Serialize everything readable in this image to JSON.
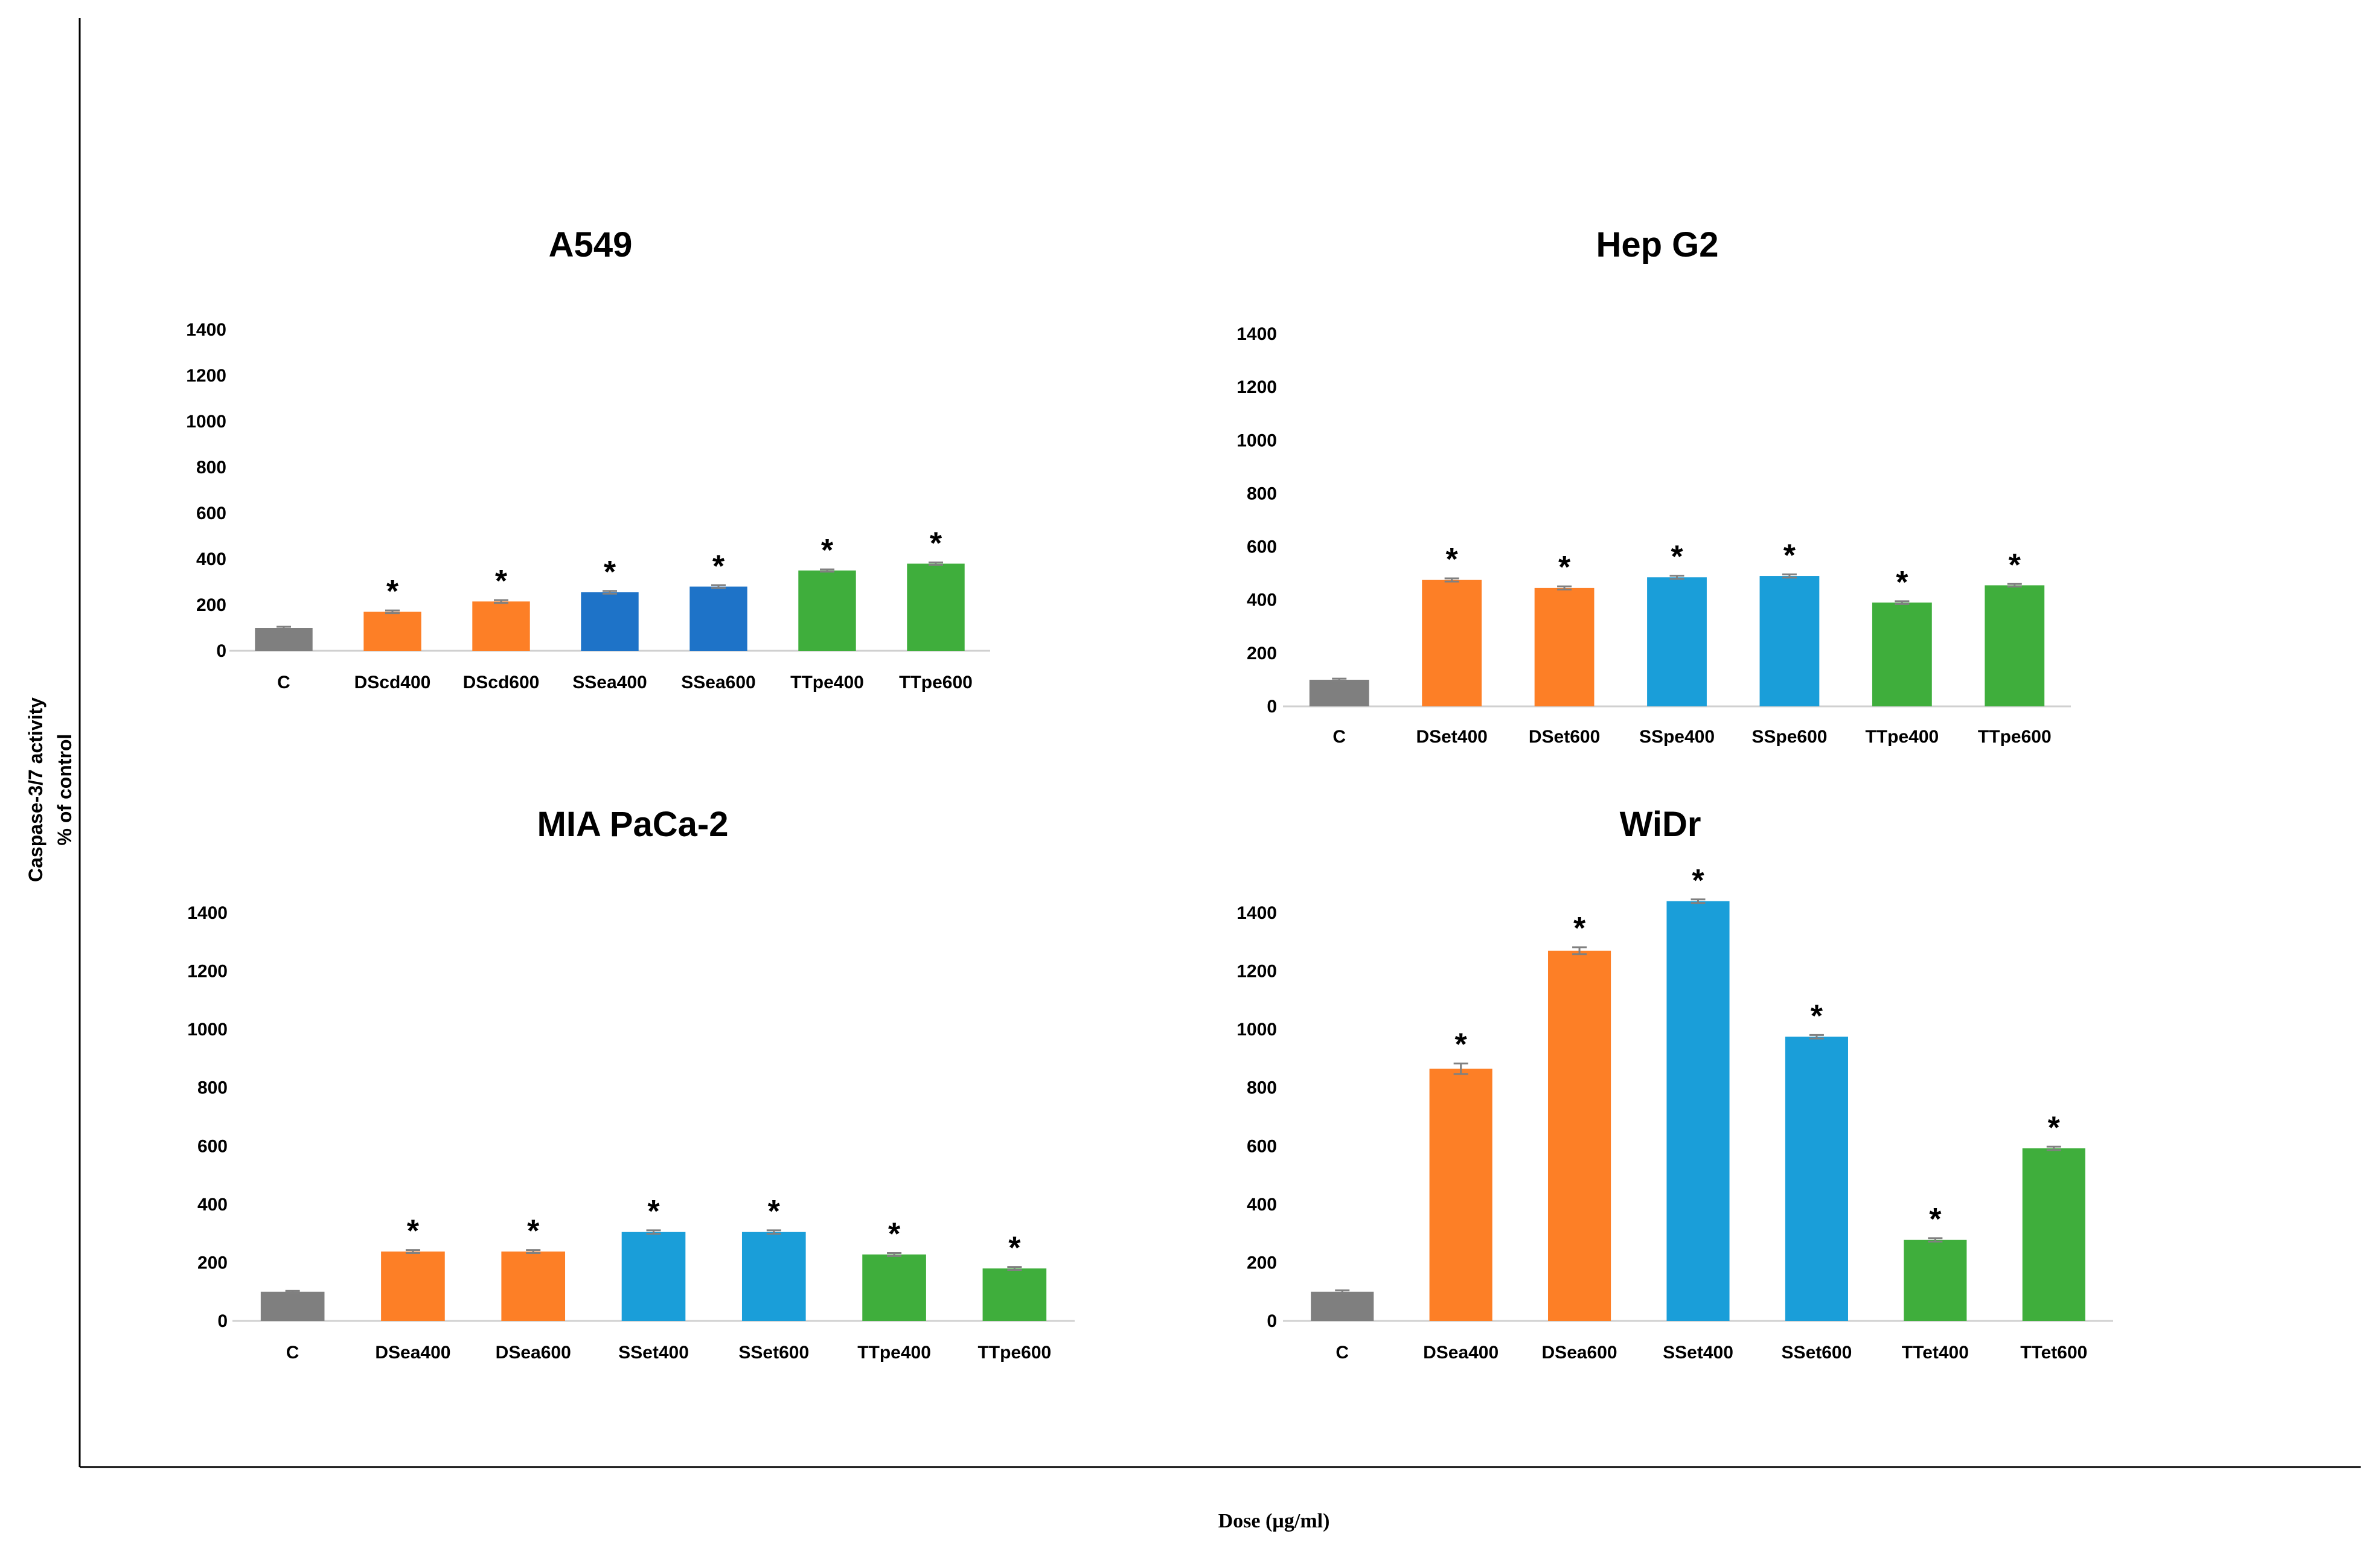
{
  "figure": {
    "x_axis_title": "Dose (µg/ml)",
    "y_axis_title_line1": "Caspase-3/7 activity",
    "y_axis_title_line2": "% of control"
  },
  "colors": {
    "control": "#7f7f7f",
    "orange": "#fd7f26",
    "blue_dark": "#1e73c8",
    "blue_light": "#1a9ed9",
    "green": "#3fae3c",
    "error_bar": "#808080",
    "axis_line": "#d0d0d0"
  },
  "chart_data": [
    {
      "type": "bar",
      "title": "A549",
      "categories": [
        "C",
        "DScd400",
        "DScd600",
        "SSea400",
        "SSea600",
        "TTpe400",
        "TTpe600"
      ],
      "values": [
        100,
        170,
        215,
        255,
        280,
        350,
        380
      ],
      "errors": [
        5,
        6,
        6,
        6,
        6,
        5,
        5
      ],
      "colors": [
        "control",
        "orange",
        "orange",
        "blue_dark",
        "blue_dark",
        "green",
        "green"
      ],
      "significant": [
        false,
        true,
        true,
        true,
        true,
        true,
        true
      ],
      "significance_marker": "*",
      "ylim": [
        0,
        1400
      ],
      "yticks": [
        0,
        200,
        400,
        600,
        800,
        1000,
        1200,
        1400
      ]
    },
    {
      "type": "bar",
      "title": "Hep G2",
      "categories": [
        "C",
        "DSet400",
        "DSet600",
        "SSpe400",
        "SSpe600",
        "TTpe400",
        "TTpe600"
      ],
      "values": [
        100,
        475,
        445,
        485,
        490,
        390,
        455
      ],
      "errors": [
        4,
        6,
        6,
        6,
        6,
        5,
        5
      ],
      "colors": [
        "control",
        "orange",
        "orange",
        "blue_light",
        "blue_light",
        "green",
        "green"
      ],
      "significant": [
        false,
        true,
        true,
        true,
        true,
        true,
        true
      ],
      "significance_marker": "*",
      "ylim": [
        0,
        1400
      ],
      "yticks": [
        0,
        200,
        400,
        600,
        800,
        1000,
        1200,
        1400
      ]
    },
    {
      "type": "bar",
      "title": "MIA PaCa-2",
      "categories": [
        "C",
        "DSea400",
        "DSea600",
        "SSet400",
        "SSet600",
        "TTpe400",
        "TTpe600"
      ],
      "values": [
        100,
        238,
        238,
        305,
        305,
        228,
        180
      ],
      "errors": [
        3,
        5,
        5,
        6,
        6,
        5,
        5
      ],
      "colors": [
        "control",
        "orange",
        "orange",
        "blue_light",
        "blue_light",
        "green",
        "green"
      ],
      "significant": [
        false,
        true,
        true,
        true,
        true,
        true,
        true
      ],
      "significance_marker": "*",
      "ylim": [
        0,
        1400
      ],
      "yticks": [
        0,
        200,
        400,
        600,
        800,
        1000,
        1200,
        1400
      ]
    },
    {
      "type": "bar",
      "title": "WiDr",
      "categories": [
        "C",
        "DSea400",
        "DSea600",
        "SSet400",
        "SSet600",
        "TTet400",
        "TTet600"
      ],
      "values": [
        100,
        865,
        1270,
        1440,
        975,
        278,
        592
      ],
      "errors": [
        5,
        18,
        12,
        6,
        6,
        6,
        6
      ],
      "colors": [
        "control",
        "orange",
        "orange",
        "blue_light",
        "blue_light",
        "green",
        "green"
      ],
      "significant": [
        false,
        true,
        true,
        true,
        true,
        true,
        true
      ],
      "significance_marker": "*",
      "ylim": [
        0,
        1400
      ],
      "yticks": [
        0,
        200,
        400,
        600,
        800,
        1000,
        1200,
        1400
      ]
    }
  ]
}
